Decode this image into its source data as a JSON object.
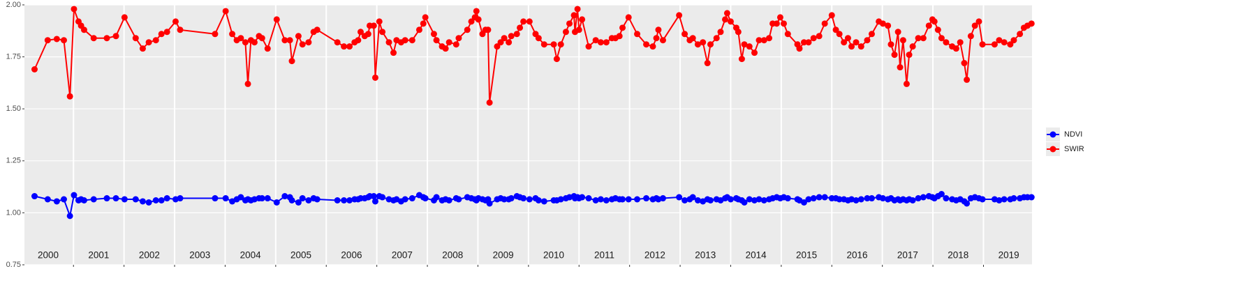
{
  "chart_data": {
    "type": "line",
    "x": [
      2000.23,
      2000.49,
      2000.67,
      2000.81,
      2000.93,
      2001.01,
      2001.1,
      2001.15,
      2001.21,
      2001.4,
      2001.66,
      2001.84,
      2002.01,
      2002.23,
      2002.37,
      2002.49,
      2002.63,
      2002.74,
      2002.85,
      2003.02,
      2003.11,
      2003.8,
      2004.01,
      2004.14,
      2004.23,
      2004.31,
      2004.4,
      2004.45,
      2004.51,
      2004.58,
      2004.67,
      2004.73,
      2004.84,
      2005.02,
      2005.18,
      2005.28,
      2005.32,
      2005.45,
      2005.53,
      2005.65,
      2005.75,
      2005.82,
      2006.22,
      2006.35,
      2006.46,
      2006.56,
      2006.63,
      2006.68,
      2006.76,
      2006.83,
      2006.86,
      2006.94,
      2006.97,
      2007.05,
      2007.11,
      2007.24,
      2007.33,
      2007.39,
      2007.48,
      2007.56,
      2007.7,
      2007.84,
      2007.92,
      2007.96,
      2008.13,
      2008.18,
      2008.29,
      2008.36,
      2008.43,
      2008.57,
      2008.62,
      2008.79,
      2008.87,
      2008.94,
      2008.97,
      2009.01,
      2009.09,
      2009.15,
      2009.2,
      2009.23,
      2009.38,
      2009.45,
      2009.52,
      2009.61,
      2009.66,
      2009.77,
      2009.83,
      2009.9,
      2010.02,
      2010.14,
      2010.2,
      2010.31,
      2010.5,
      2010.56,
      2010.64,
      2010.74,
      2010.81,
      2010.9,
      2010.92,
      2010.97,
      2011.0,
      2011.06,
      2011.19,
      2011.33,
      2011.43,
      2011.54,
      2011.65,
      2011.72,
      2011.8,
      2011.86,
      2011.98,
      2012.15,
      2012.33,
      2012.46,
      2012.53,
      2012.57,
      2012.66,
      2012.98,
      2013.09,
      2013.19,
      2013.25,
      2013.35,
      2013.45,
      2013.54,
      2013.6,
      2013.72,
      2013.8,
      2013.89,
      2013.93,
      2014.0,
      2014.11,
      2014.15,
      2014.22,
      2014.27,
      2014.37,
      2014.47,
      2014.56,
      2014.66,
      2014.76,
      2014.83,
      2014.91,
      2014.98,
      2015.05,
      2015.13,
      2015.32,
      2015.36,
      2015.45,
      2015.54,
      2015.64,
      2015.75,
      2015.86,
      2016.0,
      2016.08,
      2016.15,
      2016.24,
      2016.32,
      2016.39,
      2016.48,
      2016.58,
      2016.7,
      2016.79,
      2016.93,
      2017.01,
      2017.11,
      2017.17,
      2017.24,
      2017.31,
      2017.35,
      2017.41,
      2017.48,
      2017.53,
      2017.6,
      2017.71,
      2017.81,
      2017.92,
      2017.99,
      2018.03,
      2018.1,
      2018.17,
      2018.26,
      2018.38,
      2018.46,
      2018.54,
      2018.62,
      2018.67,
      2018.75,
      2018.83,
      2018.91,
      2018.98,
      2019.22,
      2019.31,
      2019.41,
      2019.53,
      2019.6,
      2019.72,
      2019.8,
      2019.87,
      2019.95
    ],
    "series": [
      {
        "name": "NDVI",
        "color": "#0000ff",
        "values": [
          1.08,
          1.065,
          1.055,
          1.065,
          0.985,
          1.085,
          1.06,
          1.065,
          1.06,
          1.065,
          1.07,
          1.07,
          1.065,
          1.065,
          1.055,
          1.05,
          1.06,
          1.06,
          1.07,
          1.065,
          1.07,
          1.07,
          1.07,
          1.055,
          1.065,
          1.075,
          1.06,
          1.065,
          1.06,
          1.065,
          1.07,
          1.07,
          1.07,
          1.05,
          1.08,
          1.075,
          1.06,
          1.05,
          1.07,
          1.06,
          1.07,
          1.065,
          1.06,
          1.06,
          1.06,
          1.065,
          1.065,
          1.07,
          1.07,
          1.075,
          1.08,
          1.08,
          1.055,
          1.08,
          1.075,
          1.065,
          1.06,
          1.065,
          1.055,
          1.065,
          1.07,
          1.085,
          1.075,
          1.07,
          1.06,
          1.075,
          1.06,
          1.065,
          1.06,
          1.07,
          1.065,
          1.075,
          1.07,
          1.065,
          1.06,
          1.07,
          1.065,
          1.06,
          1.065,
          1.045,
          1.065,
          1.07,
          1.065,
          1.065,
          1.07,
          1.08,
          1.075,
          1.07,
          1.065,
          1.07,
          1.06,
          1.055,
          1.06,
          1.06,
          1.065,
          1.07,
          1.075,
          1.08,
          1.07,
          1.075,
          1.07,
          1.075,
          1.07,
          1.06,
          1.065,
          1.06,
          1.065,
          1.07,
          1.065,
          1.065,
          1.065,
          1.065,
          1.07,
          1.065,
          1.07,
          1.065,
          1.07,
          1.075,
          1.06,
          1.065,
          1.075,
          1.06,
          1.055,
          1.065,
          1.06,
          1.065,
          1.06,
          1.07,
          1.075,
          1.065,
          1.07,
          1.065,
          1.06,
          1.05,
          1.065,
          1.06,
          1.065,
          1.06,
          1.065,
          1.07,
          1.075,
          1.07,
          1.075,
          1.07,
          1.065,
          1.06,
          1.05,
          1.065,
          1.07,
          1.075,
          1.075,
          1.07,
          1.07,
          1.065,
          1.065,
          1.06,
          1.065,
          1.06,
          1.065,
          1.07,
          1.07,
          1.075,
          1.07,
          1.065,
          1.07,
          1.06,
          1.065,
          1.06,
          1.065,
          1.06,
          1.065,
          1.06,
          1.07,
          1.075,
          1.08,
          1.075,
          1.07,
          1.08,
          1.09,
          1.07,
          1.065,
          1.06,
          1.065,
          1.055,
          1.045,
          1.07,
          1.075,
          1.07,
          1.065,
          1.065,
          1.06,
          1.065,
          1.065,
          1.07,
          1.07,
          1.075,
          1.075,
          1.075
        ]
      },
      {
        "name": "SWIR",
        "color": "#ff0000",
        "values": [
          1.69,
          1.83,
          1.836,
          1.83,
          1.56,
          1.98,
          1.92,
          1.9,
          1.88,
          1.84,
          1.84,
          1.85,
          1.94,
          1.84,
          1.79,
          1.82,
          1.83,
          1.86,
          1.87,
          1.92,
          1.88,
          1.86,
          1.97,
          1.86,
          1.83,
          1.84,
          1.82,
          1.62,
          1.83,
          1.82,
          1.85,
          1.84,
          1.79,
          1.93,
          1.83,
          1.83,
          1.73,
          1.85,
          1.81,
          1.82,
          1.87,
          1.88,
          1.82,
          1.8,
          1.8,
          1.82,
          1.83,
          1.87,
          1.85,
          1.86,
          1.9,
          1.9,
          1.65,
          1.92,
          1.87,
          1.82,
          1.77,
          1.83,
          1.82,
          1.83,
          1.83,
          1.88,
          1.91,
          1.94,
          1.86,
          1.83,
          1.8,
          1.79,
          1.82,
          1.81,
          1.84,
          1.88,
          1.92,
          1.94,
          1.97,
          1.93,
          1.86,
          1.88,
          1.88,
          1.53,
          1.8,
          1.82,
          1.84,
          1.82,
          1.85,
          1.86,
          1.89,
          1.92,
          1.92,
          1.86,
          1.84,
          1.81,
          1.81,
          1.74,
          1.81,
          1.87,
          1.91,
          1.95,
          1.87,
          1.98,
          1.88,
          1.93,
          1.8,
          1.83,
          1.82,
          1.82,
          1.84,
          1.84,
          1.85,
          1.89,
          1.94,
          1.86,
          1.81,
          1.8,
          1.84,
          1.88,
          1.83,
          1.95,
          1.86,
          1.83,
          1.84,
          1.81,
          1.82,
          1.72,
          1.81,
          1.84,
          1.87,
          1.93,
          1.96,
          1.92,
          1.89,
          1.87,
          1.74,
          1.81,
          1.8,
          1.77,
          1.83,
          1.83,
          1.84,
          1.91,
          1.91,
          1.94,
          1.91,
          1.86,
          1.81,
          1.79,
          1.82,
          1.82,
          1.84,
          1.85,
          1.91,
          1.95,
          1.88,
          1.86,
          1.82,
          1.84,
          1.8,
          1.82,
          1.8,
          1.83,
          1.86,
          1.92,
          1.91,
          1.9,
          1.81,
          1.76,
          1.87,
          1.7,
          1.83,
          1.62,
          1.76,
          1.8,
          1.84,
          1.84,
          1.9,
          1.93,
          1.92,
          1.88,
          1.84,
          1.82,
          1.8,
          1.79,
          1.82,
          1.72,
          1.64,
          1.85,
          1.9,
          1.92,
          1.81,
          1.81,
          1.83,
          1.82,
          1.81,
          1.83,
          1.86,
          1.89,
          1.9,
          1.91
        ]
      }
    ],
    "xlim": [
      2000.03,
      2019.96
    ],
    "xticks": [
      {
        "value": 2000.5,
        "label": "2000"
      },
      {
        "value": 2001.5,
        "label": "2001"
      },
      {
        "value": 2002.5,
        "label": "2002"
      },
      {
        "value": 2003.5,
        "label": "2003"
      },
      {
        "value": 2004.5,
        "label": "2004"
      },
      {
        "value": 2005.5,
        "label": "2005"
      },
      {
        "value": 2006.5,
        "label": "2006"
      },
      {
        "value": 2007.5,
        "label": "2007"
      },
      {
        "value": 2008.5,
        "label": "2008"
      },
      {
        "value": 2009.5,
        "label": "2009"
      },
      {
        "value": 2010.5,
        "label": "2010"
      },
      {
        "value": 2011.5,
        "label": "2011"
      },
      {
        "value": 2012.5,
        "label": "2012"
      },
      {
        "value": 2013.5,
        "label": "2013"
      },
      {
        "value": 2014.5,
        "label": "2014"
      },
      {
        "value": 2015.5,
        "label": "2015"
      },
      {
        "value": 2016.5,
        "label": "2016"
      },
      {
        "value": 2017.5,
        "label": "2017"
      },
      {
        "value": 2018.5,
        "label": "2018"
      },
      {
        "value": 2019.5,
        "label": "2019"
      }
    ],
    "xgrid": [
      2001,
      2002,
      2003,
      2004,
      2005,
      2006,
      2007,
      2008,
      2009,
      2010,
      2011,
      2012,
      2013,
      2014,
      2015,
      2016,
      2017,
      2018,
      2019
    ],
    "ylim": [
      0.75,
      2.0
    ],
    "yticks": [
      {
        "value": 0.75,
        "label": "0.75"
      },
      {
        "value": 1.0,
        "label": "1.00"
      },
      {
        "value": 1.25,
        "label": "1.25"
      },
      {
        "value": 1.5,
        "label": "1.50"
      },
      {
        "value": 1.75,
        "label": "1.75"
      },
      {
        "value": 2.0,
        "label": "2.00"
      }
    ],
    "grid": true,
    "legend": "right"
  }
}
